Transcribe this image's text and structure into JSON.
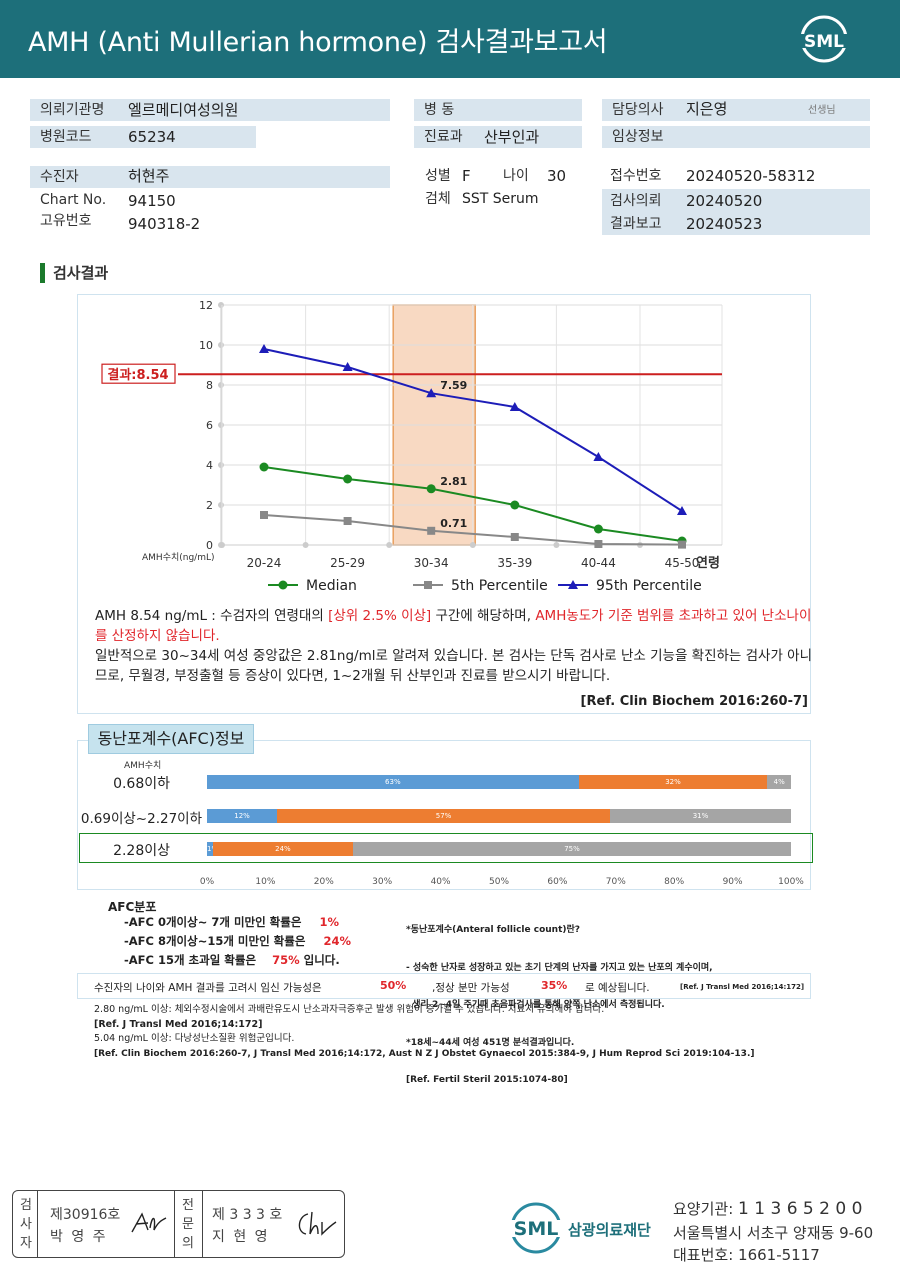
{
  "header": {
    "title": "AMH (Anti Mullerian hormone) 검사결과보고서",
    "logo_text": "SML"
  },
  "info": {
    "institution_label": "의뢰기관명",
    "institution": "엘르메디여성의원",
    "hospital_code_label": "병원코드",
    "hospital_code": "65234",
    "ward_label": "병  동",
    "ward": "",
    "dept_label": "진료과",
    "dept": "산부인과",
    "doctor_label": "담당의사",
    "doctor": "지은영",
    "doctor_suffix": "선생님",
    "clinical_label": "임상정보",
    "clinical": "",
    "patient_label": "수진자",
    "patient": "허현주",
    "chart_label": "Chart No.",
    "chart_no": "94150",
    "uid_label": "고유번호",
    "uid": "940318-2",
    "sex_label": "성별",
    "sex": "F",
    "age_label": "나이",
    "age": "30",
    "specimen_label": "검체",
    "specimen": "SST Serum",
    "receipt_label": "접수번호",
    "receipt": "20240520-58312",
    "request_label": "검사의뢰",
    "request": "20240520",
    "report_label": "결과보고",
    "report": "20240523"
  },
  "section_title": "검사결과",
  "chart_data": {
    "type": "line",
    "categories": [
      "20-24",
      "25-29",
      "30-34",
      "35-39",
      "40-44",
      "45-50"
    ],
    "xlabel": "연령",
    "ylabel": "AMH수치(ng/mL)",
    "ylim": [
      0,
      12
    ],
    "yticks": [
      "0",
      "2",
      "4",
      "6",
      "8",
      "10",
      "12"
    ],
    "grid": true,
    "legend_position": "bottom",
    "highlight_category": "30-34",
    "result_line": {
      "value": 8.54,
      "label": "결과:8.54",
      "color": "#cc1f1f"
    },
    "series": [
      {
        "name": "Median",
        "values": [
          3.9,
          3.3,
          2.81,
          2.0,
          0.8,
          0.2
        ],
        "color": "#1b8a22",
        "marker": "circle"
      },
      {
        "name": "5th Percentile",
        "values": [
          1.5,
          1.2,
          0.71,
          0.4,
          0.05,
          0.02
        ],
        "color": "#888888",
        "marker": "square"
      },
      {
        "name": "95th Percentile",
        "values": [
          9.8,
          8.9,
          7.59,
          6.9,
          4.4,
          1.7
        ],
        "color": "#1d1db8",
        "marker": "triangle"
      }
    ],
    "data_labels": [
      {
        "series": "95th Percentile",
        "category": "30-34",
        "text": "7.59"
      },
      {
        "series": "Median",
        "category": "30-34",
        "text": "2.81"
      },
      {
        "series": "5th Percentile",
        "category": "30-34",
        "text": "0.71"
      }
    ]
  },
  "interpretation": {
    "line1_a": "AMH  8.54 ng/mL : 수검자의 연령대의 ",
    "line1_b": "[상위 2.5% 이상]",
    "line1_c": " 구간에 해당하며, ",
    "line1_d": "AMH농도가 기준 범위를 초과하고 있어 난소나이를 산정하지 않습니다.",
    "line2": "일반적으로 30~34세 여성 중앙값은 2.81ng/ml로 알려져 있습니다. 본 검사는 단독 검사로 난소 기능을 확진하는 검사가 아니므로, 무월경, 부정출혈 등 증상이 있다면, 1~2개월 뒤 산부인과 진료를 받으시기 바랍니다.",
    "ref": "[Ref. Clin Biochem 2016:260-7]"
  },
  "afc": {
    "tab_title": "동난포계수(AFC)정보",
    "axis_title": "AMH수치",
    "rows": [
      {
        "label": "0.68이하",
        "segments": [
          63,
          32,
          4
        ],
        "highlight": false
      },
      {
        "label": "0.69이상~2.27이하",
        "segments": [
          12,
          57,
          31
        ],
        "highlight": false
      },
      {
        "label": "2.28이상",
        "segments": [
          1,
          24,
          75
        ],
        "highlight": true
      }
    ],
    "segment_colors": [
      "#5b9bd5",
      "#ed7d31",
      "#a5a5a5"
    ],
    "xticks": [
      "0%",
      "10%",
      "20%",
      "30%",
      "40%",
      "50%",
      "60%",
      "70%",
      "80%",
      "90%",
      "100%"
    ],
    "dist_title": "AFC분포",
    "dist": [
      {
        "text": "-AFC  0개이상~ 7개 미만인 확률은",
        "value": "1%",
        "suffix": ""
      },
      {
        "text": "-AFC  8개이상~15개 미만인 확률은",
        "value": "24%",
        "suffix": ""
      },
      {
        "text": "-AFC  15개 초과일 확률은",
        "value": "75%",
        "suffix": "입니다."
      }
    ],
    "def_title": "*동난포계수(Anteral follicle count)란?",
    "def_lines": [
      "- 성숙한 난자로 성장하고 있는 초기 단계의 난자를 가지고 있는 난포의 계수이며,",
      "  생리 2~4일 주기때 초음파검사를 통해 양쪽 난소에서 측정됩니다.",
      "*18세~44세 여성 451명 분석결과입니다.",
      "[Ref. Fertil Steril 2015:1074-80]"
    ]
  },
  "risk": {
    "text_a": "수진자의  나이와 AMH 결과를 고려시 임신 가능성은",
    "val_a": "50%",
    "text_b": ",정상 분만 가능성",
    "val_b": "35%",
    "text_c": "로 예상됩니다.",
    "ref": "[Ref. J Transl Med 2016;14:172]"
  },
  "notes": [
    "2.80  ng/mL  이상: 체외수정시술에서 과배란유도시 난소과자극증후군 발생 위험이 증가될 수 있습니다. 치료시 유의해야 합니다.",
    "[Ref. J Transl Med 2016;14:172]",
    "5.04  ng/mL  이상: 다낭성난소질환 위험군입니다.",
    "[Ref. Clin Biochem 2016:260-7, J Transl Med 2016;14:172, Aust N Z J Obstet Gynaecol 2015:384-9, J Hum Reprod Sci 2019:104-13.]"
  ],
  "footer": {
    "inspector_label": [
      "검",
      "사",
      "자"
    ],
    "inspector_no": "제30916호",
    "inspector_name": "박 영 주",
    "specialist_label": [
      "전",
      "문",
      "의"
    ],
    "specialist_no": "제 3 3 3 호",
    "specialist_name": "지 현 영",
    "org_logo": "SML",
    "org_name": "삼광의료재단",
    "code_label": "요양기관:",
    "code": "1 1 3 6 5 2 0 0",
    "address": "서울특별시 서초구 양재동 9-60",
    "phone_label": "대표번호:",
    "phone": "1661-5117"
  }
}
